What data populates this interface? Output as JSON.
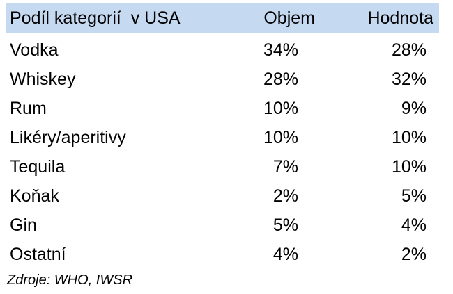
{
  "table": {
    "header": [
      "Podíl kategorií  v USA",
      "Objem",
      "Hodnota"
    ],
    "rows": [
      [
        "Vodka",
        "34%",
        "28%"
      ],
      [
        "Whiskey",
        "28%",
        "32%"
      ],
      [
        "Rum",
        "10%",
        "9%"
      ],
      [
        "Likéry/aperitivy",
        "10%",
        "10%"
      ],
      [
        "Tequila",
        "7%",
        "10%"
      ],
      [
        "Koňak",
        "2%",
        "5%"
      ],
      [
        "Gin",
        "5%",
        "4%"
      ],
      [
        "Ostatní",
        "4%",
        "2%"
      ]
    ]
  },
  "source": "Zdroje: WHO, IWSR"
}
